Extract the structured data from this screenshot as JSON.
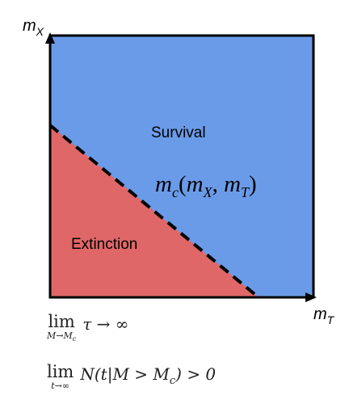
{
  "colors": {
    "survival": "#6a9be8",
    "extinction": "#e06767",
    "frame": "#000000"
  },
  "axes": {
    "y_label": {
      "main": "m",
      "sub": "X"
    },
    "x_label": {
      "main": "m",
      "sub": "T"
    }
  },
  "regions": {
    "survival": "Survival",
    "extinction": "Extinction"
  },
  "boundary_label": {
    "func": "m",
    "func_sub": "c",
    "open": "(",
    "arg1": "m",
    "arg1_sub": "X",
    "comma": ", ",
    "arg2": "m",
    "arg2_sub": "T",
    "close": ")"
  },
  "equations": [
    {
      "lim": "lim",
      "sub": "M→M",
      "sub_sub": "c",
      "expr": "τ → ∞"
    },
    {
      "lim": "lim",
      "sub": "t→∞",
      "sub_sub": "",
      "expr": "N(t|M > M",
      "expr_sub": "c",
      "expr_tail": ") > 0"
    }
  ]
}
